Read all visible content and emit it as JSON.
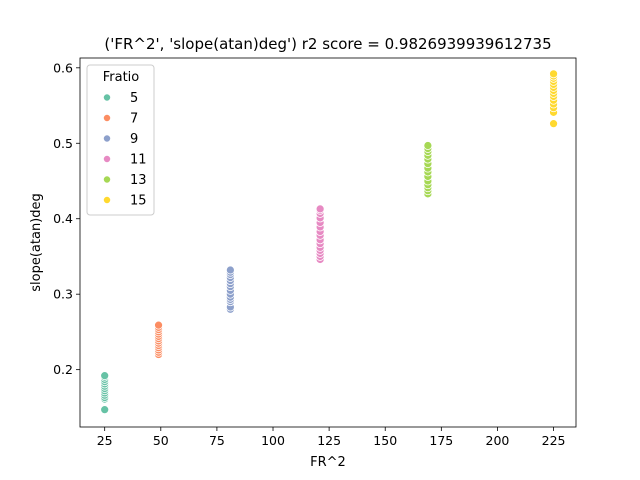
{
  "chart_data": {
    "type": "scatter",
    "title": "('FR^2', 'slope(atan)deg') r2 score = 0.9826939939612735",
    "xlabel": "FR^2",
    "ylabel": "slope(atan)deg",
    "xlim": [
      14,
      235
    ],
    "ylim": [
      0.124,
      0.613
    ],
    "xticks": [
      25,
      50,
      75,
      100,
      125,
      150,
      175,
      200,
      225
    ],
    "yticks": [
      0.2,
      0.3,
      0.4,
      0.5,
      0.6
    ],
    "grid": false,
    "legend": {
      "title": "Fratio",
      "placement": "upper-left"
    },
    "series": [
      {
        "name": "5",
        "color": "#66c2a5",
        "x": 25,
        "y": [
          0.147,
          0.161,
          0.163,
          0.166,
          0.169,
          0.172,
          0.175,
          0.178,
          0.181,
          0.184,
          0.187,
          0.19,
          0.192
        ]
      },
      {
        "name": "7",
        "color": "#fc8d62",
        "x": 49,
        "y": [
          0.22,
          0.223,
          0.226,
          0.229,
          0.232,
          0.235,
          0.238,
          0.241,
          0.244,
          0.247,
          0.25,
          0.253,
          0.256,
          0.259
        ]
      },
      {
        "name": "9",
        "color": "#8da0cb",
        "x": 81,
        "y": [
          0.28,
          0.283,
          0.29,
          0.293,
          0.296,
          0.3,
          0.305,
          0.31,
          0.314,
          0.318,
          0.322,
          0.326,
          0.329,
          0.332
        ]
      },
      {
        "name": "11",
        "color": "#e78ac3",
        "x": 121,
        "y": [
          0.346,
          0.35,
          0.354,
          0.358,
          0.362,
          0.367,
          0.372,
          0.378,
          0.383,
          0.389,
          0.395,
          0.401,
          0.407,
          0.411,
          0.413
        ]
      },
      {
        "name": "13",
        "color": "#a6d854",
        "x": 169,
        "y": [
          0.433,
          0.437,
          0.441,
          0.445,
          0.45,
          0.456,
          0.462,
          0.467,
          0.473,
          0.479,
          0.484,
          0.489,
          0.493,
          0.497
        ]
      },
      {
        "name": "15",
        "color": "#ffd92f",
        "x": 225,
        "y": [
          0.526,
          0.541,
          0.547,
          0.552,
          0.557,
          0.562,
          0.566,
          0.57,
          0.574,
          0.578,
          0.582,
          0.586,
          0.589,
          0.592
        ]
      }
    ]
  }
}
